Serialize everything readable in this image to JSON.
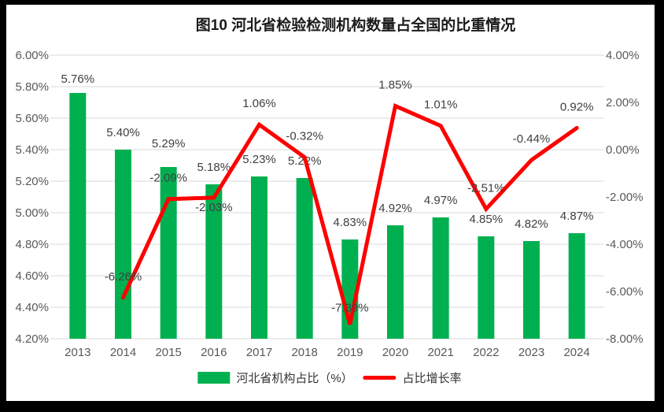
{
  "title": "图10  河北省检验检测机构数量占全国的比重情况",
  "legend": [
    {
      "label": "河北省机构占比（%）",
      "swatch": "bar",
      "color": "#00B050"
    },
    {
      "label": "占比增长率",
      "swatch": "line",
      "color": "#FF0000"
    }
  ],
  "colors": {
    "bar": "#00B050",
    "line": "#FF0000",
    "grid": "#D9D9D9",
    "axis_text": "#595959",
    "data_label_text": "#404040",
    "frame": "#000000"
  },
  "chart_data": {
    "type": "bar+line combo",
    "title": "图10  河北省检验检测机构数量占全国的比重情况",
    "categories": [
      "2013",
      "2014",
      "2015",
      "2016",
      "2017",
      "2018",
      "2019",
      "2020",
      "2021",
      "2022",
      "2023",
      "2024"
    ],
    "series": [
      {
        "name": "河北省机构占比（%）",
        "type": "bar",
        "axis": "left",
        "color": "#00B050",
        "values": [
          5.76,
          5.4,
          5.29,
          5.18,
          5.23,
          5.22,
          4.83,
          4.92,
          4.97,
          4.85,
          4.82,
          4.87
        ],
        "labels": [
          "5.76%",
          "5.40%",
          "5.29%",
          "5.18%",
          "5.23%",
          "5.22%",
          "4.83%",
          "4.92%",
          "4.97%",
          "4.85%",
          "4.82%",
          "4.87%"
        ]
      },
      {
        "name": "占比增长率",
        "type": "line",
        "axis": "right",
        "color": "#FF0000",
        "values": [
          null,
          -6.26,
          -2.09,
          -2.03,
          1.06,
          -0.32,
          -7.39,
          1.85,
          1.01,
          -2.51,
          -0.44,
          0.92
        ],
        "labels": [
          null,
          "-6.26%",
          "-2.09%",
          "-2.03%",
          "1.06%",
          "-0.32%",
          "-7.39%",
          "1.85%",
          "1.01%",
          "-2.51%",
          "-0.44%",
          "0.92%"
        ]
      }
    ],
    "left_axis": {
      "min": 4.2,
      "max": 6.0,
      "step": 0.2,
      "ticks": [
        "6.00%",
        "5.80%",
        "5.60%",
        "5.40%",
        "5.20%",
        "5.00%",
        "4.80%",
        "4.60%",
        "4.40%",
        "4.20%"
      ]
    },
    "right_axis": {
      "min": -8.0,
      "max": 4.0,
      "step": 2.0,
      "ticks": [
        "4.00%",
        "2.00%",
        "0.00%",
        "-2.00%",
        "-4.00%",
        "-6.00%",
        "-8.00%"
      ]
    },
    "grid": true,
    "legend_position": "bottom"
  }
}
